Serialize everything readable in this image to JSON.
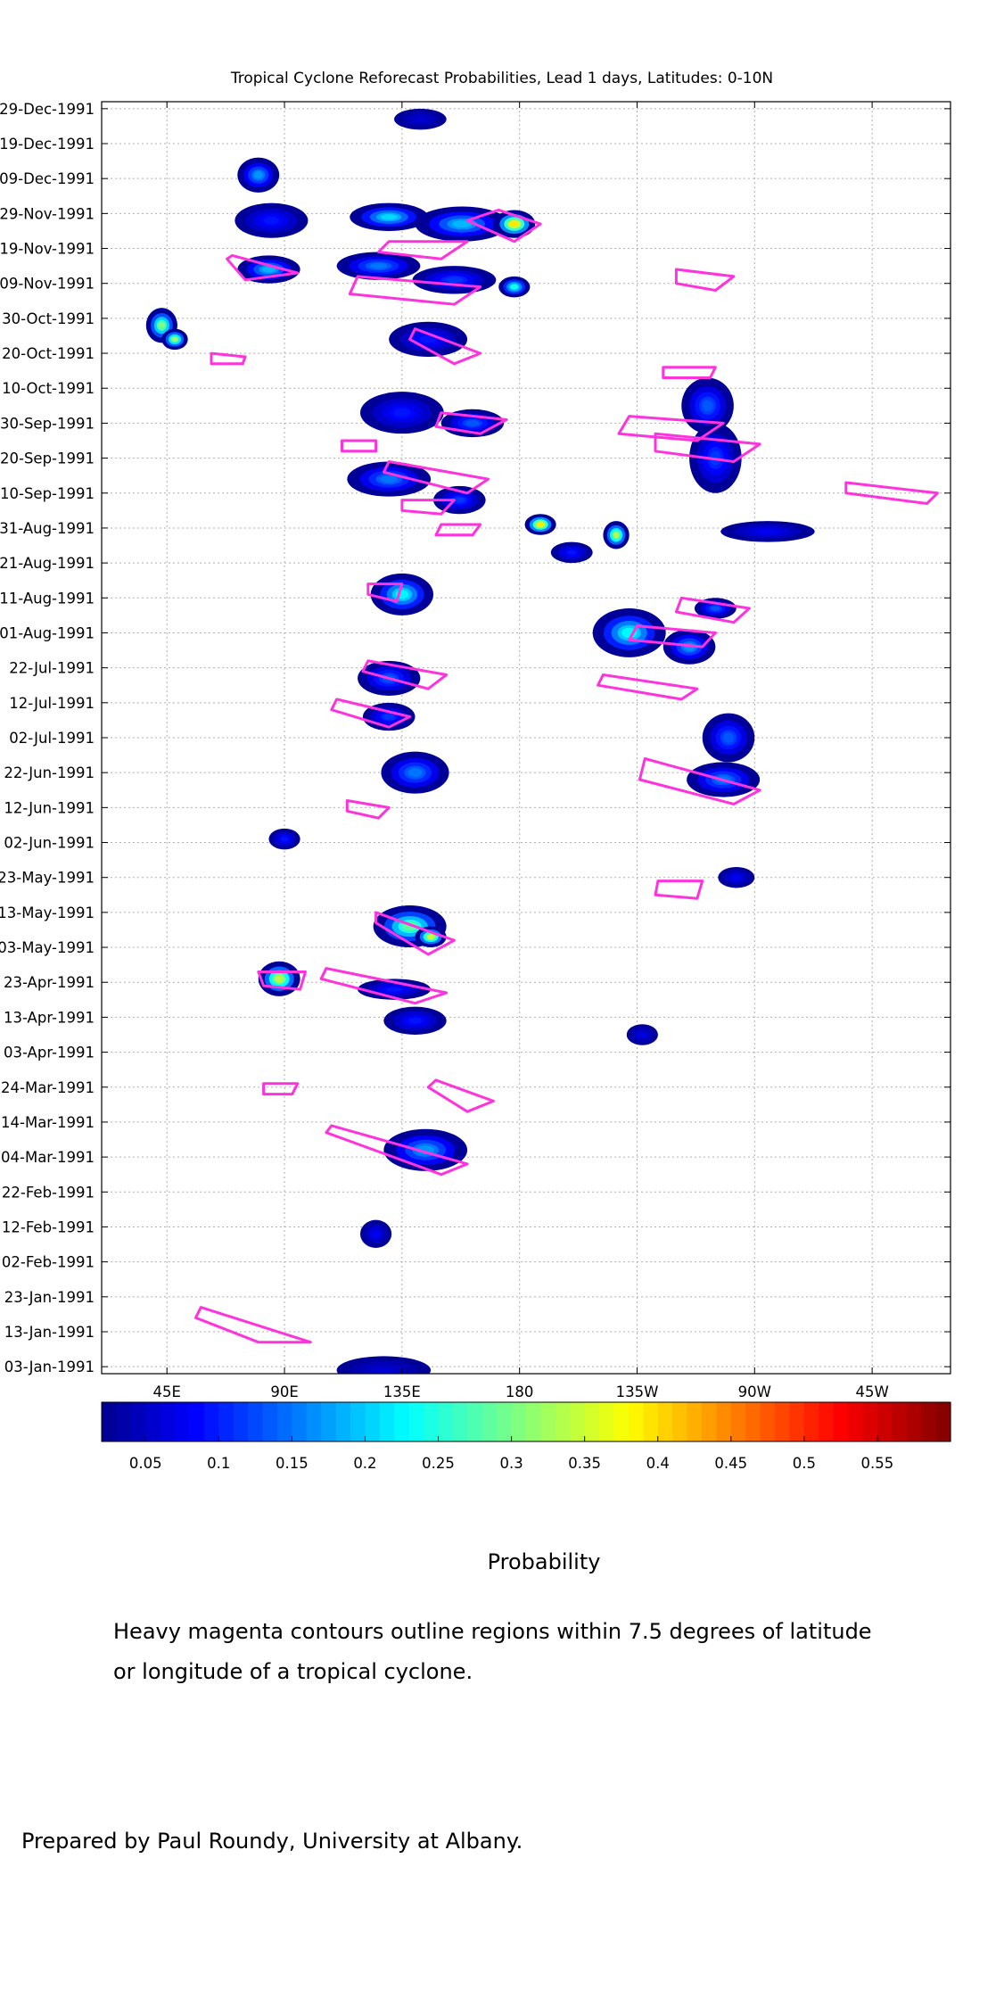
{
  "chart_data": {
    "type": "heatmap",
    "title": "Tropical Cyclone Reforecast Probabilities, Lead 1 days, Latitudes: 0-10N",
    "x_tick_labels": [
      "45E",
      "90E",
      "135E",
      "180",
      "135W",
      "90W",
      "45W"
    ],
    "x_ticks_deg_east": [
      45,
      90,
      135,
      180,
      225,
      270,
      315
    ],
    "x_range_deg_east": [
      20,
      345
    ],
    "y_tick_labels": [
      "29-Dec-1991",
      "19-Dec-1991",
      "09-Dec-1991",
      "29-Nov-1991",
      "19-Nov-1991",
      "09-Nov-1991",
      "30-Oct-1991",
      "20-Oct-1991",
      "10-Oct-1991",
      "30-Sep-1991",
      "20-Sep-1991",
      "10-Sep-1991",
      "31-Aug-1991",
      "21-Aug-1991",
      "11-Aug-1991",
      "01-Aug-1991",
      "22-Jul-1991",
      "12-Jul-1991",
      "02-Jul-1991",
      "22-Jun-1991",
      "12-Jun-1991",
      "02-Jun-1991",
      "23-May-1991",
      "13-May-1991",
      "03-May-1991",
      "23-Apr-1991",
      "13-Apr-1991",
      "03-Apr-1991",
      "24-Mar-1991",
      "14-Mar-1991",
      "04-Mar-1991",
      "22-Feb-1991",
      "12-Feb-1991",
      "02-Feb-1991",
      "23-Jan-1991",
      "13-Jan-1991",
      "03-Jan-1991"
    ],
    "y_range": [
      "01-Jan-1991",
      "31-Dec-1991"
    ],
    "colorbar": {
      "label": "Probability",
      "min": 0.02,
      "max": 0.6,
      "tick_labels": [
        "0.05",
        "0.1",
        "0.15",
        "0.2",
        "0.25",
        "0.3",
        "0.35",
        "0.4",
        "0.45",
        "0.5",
        "0.55"
      ],
      "ticks": [
        0.05,
        0.1,
        0.15,
        0.2,
        0.25,
        0.3,
        0.35,
        0.4,
        0.45,
        0.5,
        0.55
      ]
    },
    "blobs": [
      {
        "lon": 80,
        "date": "1991-12-10",
        "dlon": 8,
        "days": 5,
        "p": 0.18
      },
      {
        "lon": 142,
        "date": "1991-12-26",
        "dlon": 10,
        "days": 3,
        "p": 0.06
      },
      {
        "lon": 85,
        "date": "1991-11-27",
        "dlon": 14,
        "days": 5,
        "p": 0.1
      },
      {
        "lon": 130,
        "date": "1991-11-28",
        "dlon": 15,
        "days": 4,
        "p": 0.22
      },
      {
        "lon": 158,
        "date": "1991-11-26",
        "dlon": 18,
        "days": 5,
        "p": 0.2
      },
      {
        "lon": 178,
        "date": "1991-11-26",
        "dlon": 8,
        "days": 4,
        "p": 0.42
      },
      {
        "lon": 84,
        "date": "1991-11-13",
        "dlon": 12,
        "days": 4,
        "p": 0.2
      },
      {
        "lon": 126,
        "date": "1991-11-14",
        "dlon": 16,
        "days": 4,
        "p": 0.16
      },
      {
        "lon": 155,
        "date": "1991-11-10",
        "dlon": 16,
        "days": 4,
        "p": 0.12
      },
      {
        "lon": 178,
        "date": "1991-11-08",
        "dlon": 6,
        "days": 3,
        "p": 0.26
      },
      {
        "lon": 43,
        "date": "1991-10-28",
        "dlon": 6,
        "days": 5,
        "p": 0.32
      },
      {
        "lon": 48,
        "date": "1991-10-24",
        "dlon": 5,
        "days": 3,
        "p": 0.34
      },
      {
        "lon": 145,
        "date": "1991-10-24",
        "dlon": 15,
        "days": 5,
        "p": 0.1
      },
      {
        "lon": 135,
        "date": "1991-10-03",
        "dlon": 16,
        "days": 6,
        "p": 0.1
      },
      {
        "lon": 162,
        "date": "1991-09-30",
        "dlon": 12,
        "days": 4,
        "p": 0.14
      },
      {
        "lon": 252,
        "date": "1991-10-05",
        "dlon": 10,
        "days": 8,
        "p": 0.14
      },
      {
        "lon": 255,
        "date": "1991-09-20",
        "dlon": 10,
        "days": 10,
        "p": 0.12
      },
      {
        "lon": 130,
        "date": "1991-09-14",
        "dlon": 16,
        "days": 5,
        "p": 0.16
      },
      {
        "lon": 157,
        "date": "1991-09-08",
        "dlon": 10,
        "days": 4,
        "p": 0.12
      },
      {
        "lon": 188,
        "date": "1991-09-01",
        "dlon": 6,
        "days": 3,
        "p": 0.42
      },
      {
        "lon": 217,
        "date": "1991-08-29",
        "dlon": 5,
        "days": 4,
        "p": 0.36
      },
      {
        "lon": 200,
        "date": "1991-08-24",
        "dlon": 8,
        "days": 3,
        "p": 0.1
      },
      {
        "lon": 275,
        "date": "1991-08-30",
        "dlon": 18,
        "days": 3,
        "p": 0.08
      },
      {
        "lon": 135,
        "date": "1991-08-12",
        "dlon": 12,
        "days": 6,
        "p": 0.24
      },
      {
        "lon": 222,
        "date": "1991-08-01",
        "dlon": 14,
        "days": 7,
        "p": 0.24
      },
      {
        "lon": 245,
        "date": "1991-07-28",
        "dlon": 10,
        "days": 5,
        "p": 0.18
      },
      {
        "lon": 255,
        "date": "1991-08-08",
        "dlon": 8,
        "days": 3,
        "p": 0.14
      },
      {
        "lon": 130,
        "date": "1991-07-19",
        "dlon": 12,
        "days": 5,
        "p": 0.14
      },
      {
        "lon": 130,
        "date": "1991-07-08",
        "dlon": 10,
        "days": 4,
        "p": 0.12
      },
      {
        "lon": 260,
        "date": "1991-07-02",
        "dlon": 10,
        "days": 7,
        "p": 0.14
      },
      {
        "lon": 258,
        "date": "1991-06-20",
        "dlon": 14,
        "days": 5,
        "p": 0.16
      },
      {
        "lon": 140,
        "date": "1991-06-22",
        "dlon": 13,
        "days": 6,
        "p": 0.16
      },
      {
        "lon": 90,
        "date": "1991-06-03",
        "dlon": 6,
        "days": 3,
        "p": 0.1
      },
      {
        "lon": 263,
        "date": "1991-05-23",
        "dlon": 7,
        "days": 3,
        "p": 0.08
      },
      {
        "lon": 138,
        "date": "1991-05-09",
        "dlon": 14,
        "days": 6,
        "p": 0.3
      },
      {
        "lon": 146,
        "date": "1991-05-06",
        "dlon": 6,
        "days": 3,
        "p": 0.38
      },
      {
        "lon": 88,
        "date": "1991-04-24",
        "dlon": 8,
        "days": 5,
        "p": 0.36
      },
      {
        "lon": 132,
        "date": "1991-04-21",
        "dlon": 14,
        "days": 3,
        "p": 0.1
      },
      {
        "lon": 140,
        "date": "1991-04-12",
        "dlon": 12,
        "days": 4,
        "p": 0.1
      },
      {
        "lon": 227,
        "date": "1991-04-08",
        "dlon": 6,
        "days": 3,
        "p": 0.07
      },
      {
        "lon": 144,
        "date": "1991-03-06",
        "dlon": 16,
        "days": 6,
        "p": 0.18
      },
      {
        "lon": 125,
        "date": "1991-02-10",
        "dlon": 6,
        "days": 4,
        "p": 0.08
      },
      {
        "lon": 128,
        "date": "1991-01-02",
        "dlon": 18,
        "days": 4,
        "p": 0.06
      }
    ],
    "contours": [
      [
        [
          172,
          "1991-11-30"
        ],
        [
          188,
          "1991-11-26"
        ],
        [
          178,
          "1991-11-21"
        ],
        [
          160,
          "1991-11-27"
        ]
      ],
      [
        [
          130,
          "1991-11-21"
        ],
        [
          160,
          "1991-11-21"
        ],
        [
          150,
          "1991-11-16"
        ],
        [
          126,
          "1991-11-18"
        ]
      ],
      [
        [
          70,
          "1991-11-17"
        ],
        [
          95,
          "1991-11-12"
        ],
        [
          75,
          "1991-11-10"
        ],
        [
          68,
          "1991-11-16"
        ]
      ],
      [
        [
          118,
          "1991-11-11"
        ],
        [
          165,
          "1991-11-08"
        ],
        [
          155,
          "1991-11-03"
        ],
        [
          115,
          "1991-11-06"
        ]
      ],
      [
        [
          240,
          "1991-11-13"
        ],
        [
          262,
          "1991-11-11"
        ],
        [
          255,
          "1991-11-07"
        ],
        [
          240,
          "1991-11-09"
        ]
      ],
      [
        [
          140,
          "1991-10-27"
        ],
        [
          165,
          "1991-10-20"
        ],
        [
          155,
          "1991-10-17"
        ],
        [
          138,
          "1991-10-24"
        ]
      ],
      [
        [
          62,
          "1991-10-20"
        ],
        [
          75,
          "1991-10-19"
        ],
        [
          74,
          "1991-10-17"
        ],
        [
          62,
          "1991-10-17"
        ]
      ],
      [
        [
          235,
          "1991-10-16"
        ],
        [
          255,
          "1991-10-16"
        ],
        [
          253,
          "1991-10-13"
        ],
        [
          235,
          "1991-10-13"
        ]
      ],
      [
        [
          150,
          "1991-10-03"
        ],
        [
          175,
          "1991-10-01"
        ],
        [
          165,
          "1991-09-27"
        ],
        [
          148,
          "1991-09-29"
        ]
      ],
      [
        [
          222,
          "1991-10-02"
        ],
        [
          258,
          "1991-09-30"
        ],
        [
          248,
          "1991-09-25"
        ],
        [
          218,
          "1991-09-27"
        ]
      ],
      [
        [
          232,
          "1991-09-27"
        ],
        [
          272,
          "1991-09-24"
        ],
        [
          262,
          "1991-09-19"
        ],
        [
          232,
          "1991-09-22"
        ]
      ],
      [
        [
          112,
          "1991-09-25"
        ],
        [
          125,
          "1991-09-25"
        ],
        [
          125,
          "1991-09-22"
        ],
        [
          112,
          "1991-09-22"
        ]
      ],
      [
        [
          130,
          "1991-09-19"
        ],
        [
          168,
          "1991-09-14"
        ],
        [
          160,
          "1991-09-10"
        ],
        [
          128,
          "1991-09-16"
        ]
      ],
      [
        [
          135,
          "1991-09-08"
        ],
        [
          155,
          "1991-09-08"
        ],
        [
          150,
          "1991-09-04"
        ],
        [
          135,
          "1991-09-05"
        ]
      ],
      [
        [
          150,
          "1991-09-01"
        ],
        [
          165,
          "1991-09-01"
        ],
        [
          162,
          "1991-08-29"
        ],
        [
          148,
          "1991-08-29"
        ]
      ],
      [
        [
          305,
          "1991-09-13"
        ],
        [
          340,
          "1991-09-10"
        ],
        [
          336,
          "1991-09-07"
        ],
        [
          305,
          "1991-09-10"
        ]
      ],
      [
        [
          122,
          "1991-08-15"
        ],
        [
          135,
          "1991-08-15"
        ],
        [
          133,
          "1991-08-10"
        ],
        [
          122,
          "1991-08-12"
        ]
      ],
      [
        [
          242,
          "1991-08-11"
        ],
        [
          268,
          "1991-08-08"
        ],
        [
          262,
          "1991-08-04"
        ],
        [
          240,
          "1991-08-07"
        ]
      ],
      [
        [
          225,
          "1991-08-03"
        ],
        [
          255,
          "1991-08-01"
        ],
        [
          250,
          "1991-07-28"
        ],
        [
          222,
          "1991-07-30"
        ]
      ],
      [
        [
          122,
          "1991-07-24"
        ],
        [
          152,
          "1991-07-20"
        ],
        [
          145,
          "1991-07-16"
        ],
        [
          120,
          "1991-07-21"
        ]
      ],
      [
        [
          212,
          "1991-07-20"
        ],
        [
          248,
          "1991-07-16"
        ],
        [
          242,
          "1991-07-13"
        ],
        [
          210,
          "1991-07-17"
        ]
      ],
      [
        [
          110,
          "1991-07-13"
        ],
        [
          138,
          "1991-07-08"
        ],
        [
          130,
          "1991-07-05"
        ],
        [
          108,
          "1991-07-10"
        ]
      ],
      [
        [
          228,
          "1991-06-26"
        ],
        [
          272,
          "1991-06-17"
        ],
        [
          262,
          "1991-06-13"
        ],
        [
          226,
          "1991-06-20"
        ]
      ],
      [
        [
          114,
          "1991-06-14"
        ],
        [
          130,
          "1991-06-12"
        ],
        [
          126,
          "1991-06-09"
        ],
        [
          114,
          "1991-06-11"
        ]
      ],
      [
        [
          233,
          "1991-05-22"
        ],
        [
          250,
          "1991-05-22"
        ],
        [
          248,
          "1991-05-17"
        ],
        [
          232,
          "1991-05-18"
        ]
      ],
      [
        [
          125,
          "1991-05-13"
        ],
        [
          155,
          "1991-05-05"
        ],
        [
          145,
          "1991-05-01"
        ],
        [
          125,
          "1991-05-10"
        ]
      ],
      [
        [
          80,
          "1991-04-26"
        ],
        [
          98,
          "1991-04-26"
        ],
        [
          96,
          "1991-04-21"
        ],
        [
          82,
          "1991-04-22"
        ]
      ],
      [
        [
          106,
          "1991-04-27"
        ],
        [
          152,
          "1991-04-20"
        ],
        [
          140,
          "1991-04-17"
        ],
        [
          104,
          "1991-04-24"
        ]
      ],
      [
        [
          82,
          "1991-03-25"
        ],
        [
          95,
          "1991-03-25"
        ],
        [
          93,
          "1991-03-22"
        ],
        [
          82,
          "1991-03-22"
        ]
      ],
      [
        [
          148,
          "1991-03-26"
        ],
        [
          170,
          "1991-03-20"
        ],
        [
          160,
          "1991-03-17"
        ],
        [
          145,
          "1991-03-24"
        ]
      ],
      [
        [
          108,
          "1991-03-13"
        ],
        [
          160,
          "1991-03-02"
        ],
        [
          150,
          "1991-02-27"
        ],
        [
          106,
          "1991-03-11"
        ]
      ],
      [
        [
          58,
          "1991-01-20"
        ],
        [
          100,
          "1991-01-10"
        ],
        [
          80,
          "1991-01-10"
        ],
        [
          56,
          "1991-01-17"
        ]
      ]
    ]
  },
  "texts": {
    "title": "Tropical Cyclone Reforecast Probabilities, Lead 1 days, Latitudes: 0-10N",
    "colorbar_label": "Probability",
    "note_line1": "Heavy magenta contours outline regions within 7.5 degrees of latitude",
    "note_line2": "or longitude of a tropical cyclone.",
    "credit": "Prepared by Paul Roundy, University at Albany."
  },
  "colors": {
    "contour": "#ff33dd",
    "grid": "#b0b0b0",
    "colormap": [
      "#00008f",
      "#0000ff",
      "#00ffff",
      "#ffff00",
      "#ff0000",
      "#800000"
    ]
  }
}
